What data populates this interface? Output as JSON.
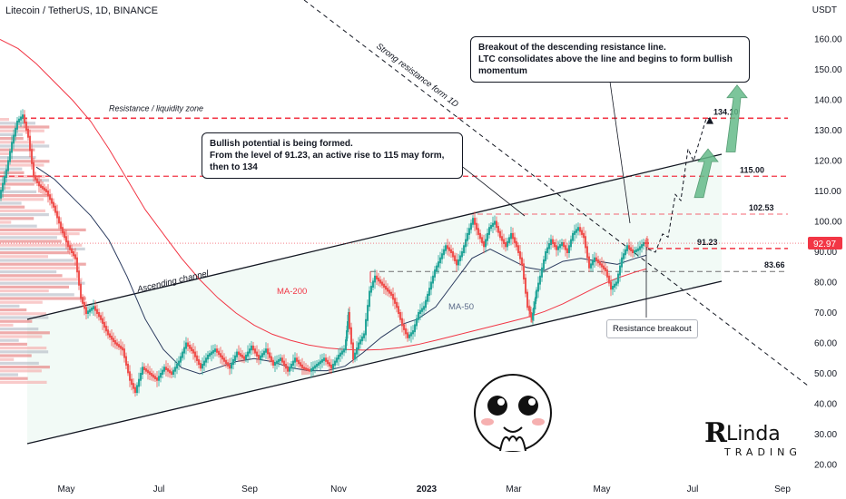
{
  "header": {
    "symbol_title": "Litecoin / TetherUS, 1D, BINANCE",
    "unit": "USDT"
  },
  "chart_data": {
    "type": "line",
    "price_scale": {
      "ylim": [
        15,
        168
      ],
      "ticks": [
        160.0,
        150.0,
        140.0,
        130.0,
        120.0,
        110.0,
        100.0,
        90.0,
        80.0,
        70.0,
        60.0,
        50.0,
        40.0,
        30.0,
        20.0
      ],
      "tick_labels": [
        "160.00",
        "150.00",
        "140.00",
        "130.00",
        "120.00",
        "110.00",
        "100.00",
        "90.00",
        "80.00",
        "70.00",
        "60.00",
        "50.00",
        "40.00",
        "30.00",
        "20.00"
      ],
      "current_price": 92.97,
      "current_price_label": "92.97"
    },
    "time_scale": {
      "labels": [
        "May",
        "Jul",
        "Sep",
        "Nov",
        "2023",
        "Mar",
        "May",
        "Jul",
        "Sep"
      ],
      "bold_label": "2023"
    },
    "series": [
      {
        "name": "MA-200",
        "color": "#f23645",
        "values": [
          [
            0,
            160
          ],
          [
            20,
            157
          ],
          [
            40,
            152
          ],
          [
            60,
            146
          ],
          [
            80,
            140
          ],
          [
            100,
            133
          ],
          [
            120,
            124
          ],
          [
            140,
            114
          ],
          [
            160,
            104
          ],
          [
            180,
            96
          ],
          [
            200,
            88
          ],
          [
            220,
            81
          ],
          [
            240,
            75
          ],
          [
            260,
            70
          ],
          [
            280,
            66
          ],
          [
            300,
            63
          ],
          [
            320,
            61
          ],
          [
            340,
            59.5
          ],
          [
            360,
            58.5
          ],
          [
            380,
            58
          ],
          [
            400,
            57.8
          ],
          [
            420,
            58
          ],
          [
            440,
            58.6
          ],
          [
            460,
            59.6
          ],
          [
            480,
            61
          ],
          [
            500,
            62.5
          ],
          [
            520,
            64
          ],
          [
            540,
            65.5
          ],
          [
            560,
            67
          ],
          [
            580,
            68.5
          ],
          [
            600,
            70.5
          ],
          [
            620,
            73
          ],
          [
            640,
            76
          ],
          [
            660,
            79
          ],
          [
            680,
            81.5
          ],
          [
            700,
            83.5
          ],
          [
            712,
            84.5
          ]
        ]
      },
      {
        "name": "MA-50",
        "color": "#2a3a5e",
        "values": [
          [
            40,
            118
          ],
          [
            60,
            114
          ],
          [
            80,
            108
          ],
          [
            100,
            102
          ],
          [
            120,
            94
          ],
          [
            140,
            82
          ],
          [
            160,
            68
          ],
          [
            180,
            58
          ],
          [
            200,
            52
          ],
          [
            220,
            50
          ],
          [
            240,
            52
          ],
          [
            260,
            54
          ],
          [
            280,
            55
          ],
          [
            300,
            54
          ],
          [
            320,
            52
          ],
          [
            340,
            51
          ],
          [
            360,
            51
          ],
          [
            380,
            52.5
          ],
          [
            400,
            57
          ],
          [
            420,
            62
          ],
          [
            440,
            66
          ],
          [
            460,
            68
          ],
          [
            480,
            72
          ],
          [
            500,
            80
          ],
          [
            520,
            88
          ],
          [
            540,
            91
          ],
          [
            560,
            88
          ],
          [
            580,
            85
          ],
          [
            600,
            84
          ],
          [
            620,
            87
          ],
          [
            640,
            88
          ],
          [
            660,
            87
          ],
          [
            680,
            86
          ],
          [
            700,
            88
          ],
          [
            712,
            89
          ]
        ]
      },
      {
        "name": "Price",
        "color": "#26a69a",
        "values": [
          [
            0,
            108
          ],
          [
            8,
            117
          ],
          [
            14,
            126
          ],
          [
            20,
            133
          ],
          [
            26,
            135
          ],
          [
            32,
            128
          ],
          [
            38,
            115
          ],
          [
            44,
            112
          ],
          [
            52,
            110
          ],
          [
            60,
            105
          ],
          [
            68,
            98
          ],
          [
            76,
            92
          ],
          [
            84,
            88
          ],
          [
            90,
            75
          ],
          [
            96,
            70
          ],
          [
            104,
            72
          ],
          [
            112,
            68
          ],
          [
            120,
            63
          ],
          [
            128,
            60
          ],
          [
            136,
            58
          ],
          [
            144,
            48
          ],
          [
            150,
            44
          ],
          [
            158,
            52
          ],
          [
            166,
            50
          ],
          [
            174,
            48
          ],
          [
            182,
            52
          ],
          [
            190,
            50
          ],
          [
            198,
            54
          ],
          [
            206,
            60
          ],
          [
            214,
            57
          ],
          [
            222,
            52
          ],
          [
            230,
            56
          ],
          [
            238,
            58
          ],
          [
            246,
            55
          ],
          [
            254,
            52
          ],
          [
            262,
            57
          ],
          [
            270,
            55
          ],
          [
            278,
            59
          ],
          [
            286,
            55
          ],
          [
            294,
            58
          ],
          [
            302,
            53
          ],
          [
            310,
            55
          ],
          [
            318,
            51
          ],
          [
            326,
            55
          ],
          [
            334,
            52
          ],
          [
            342,
            51
          ],
          [
            350,
            53
          ],
          [
            358,
            55
          ],
          [
            366,
            52
          ],
          [
            374,
            56
          ],
          [
            380,
            58
          ],
          [
            384,
            70
          ],
          [
            390,
            55
          ],
          [
            396,
            60
          ],
          [
            402,
            63
          ],
          [
            408,
            77
          ],
          [
            414,
            82
          ],
          [
            420,
            80
          ],
          [
            426,
            78
          ],
          [
            432,
            76
          ],
          [
            438,
            72
          ],
          [
            444,
            66
          ],
          [
            450,
            62
          ],
          [
            456,
            64
          ],
          [
            462,
            70
          ],
          [
            468,
            72
          ],
          [
            474,
            78
          ],
          [
            480,
            84
          ],
          [
            486,
            88
          ],
          [
            492,
            92
          ],
          [
            498,
            90
          ],
          [
            504,
            86
          ],
          [
            510,
            90
          ],
          [
            516,
            96
          ],
          [
            522,
            101
          ],
          [
            528,
            96
          ],
          [
            534,
            92
          ],
          [
            540,
            98
          ],
          [
            546,
            100
          ],
          [
            552,
            95
          ],
          [
            558,
            92
          ],
          [
            564,
            96
          ],
          [
            570,
            92
          ],
          [
            576,
            86
          ],
          [
            582,
            72
          ],
          [
            586,
            68
          ],
          [
            590,
            75
          ],
          [
            596,
            82
          ],
          [
            602,
            90
          ],
          [
            608,
            94
          ],
          [
            614,
            91
          ],
          [
            620,
            93
          ],
          [
            626,
            90
          ],
          [
            632,
            96
          ],
          [
            638,
            98
          ],
          [
            644,
            95
          ],
          [
            650,
            85
          ],
          [
            656,
            88
          ],
          [
            662,
            86
          ],
          [
            668,
            84
          ],
          [
            674,
            78
          ],
          [
            680,
            80
          ],
          [
            686,
            88
          ],
          [
            692,
            92
          ],
          [
            698,
            90
          ],
          [
            704,
            91
          ],
          [
            710,
            93
          ],
          [
            714,
            92.97
          ]
        ]
      }
    ],
    "projection": {
      "path": [
        [
          714,
          91
        ],
        [
          722,
          90
        ],
        [
          730,
          96
        ],
        [
          736,
          95
        ],
        [
          744,
          109
        ],
        [
          750,
          107
        ],
        [
          758,
          124
        ],
        [
          764,
          120
        ],
        [
          770,
          126
        ],
        [
          778,
          134
        ],
        [
          782,
          134
        ]
      ],
      "arrows": [
        {
          "from": [
            805,
            123
          ],
          "to": [
            812,
            145
          ]
        },
        {
          "from": [
            770,
            108
          ],
          "to": [
            780,
            124
          ]
        }
      ]
    },
    "levels": [
      {
        "value": 134.1,
        "label": "134.10",
        "color": "#f23645",
        "style": "dashed",
        "weight": 1.6,
        "text": "Resistance / liquidity zone"
      },
      {
        "value": 115.0,
        "label": "115.00",
        "color": "#f23645",
        "style": "dashed",
        "weight": 1.2
      },
      {
        "value": 102.53,
        "label": "102.53",
        "color": "#f23645",
        "style": "dashed",
        "weight": 0.8
      },
      {
        "value": 91.23,
        "label": "91.23",
        "color": "#f23645",
        "style": "dashed",
        "weight": 1.6
      },
      {
        "value": 83.66,
        "label": "83.66",
        "color": "#707070",
        "style": "dashed",
        "weight": 1.0
      }
    ],
    "annotations": {
      "ascending_channel": "Ascending channel",
      "strong_resistance": "Strong resistance form 1D",
      "ma200_label": "MA-200",
      "ma50_label": "MA-50",
      "callout_top": [
        "Breakout of the descending resistance line.",
        "LTC consolidates above the line and begins to form bullish momentum"
      ],
      "callout_mid": [
        "Bullish potential is being formed.",
        "From the level of 91.23, an active rise to 115 may form, then to 134"
      ],
      "badge": "Resistance breakout"
    },
    "colors": {
      "up": "#26a69a",
      "down": "#ef5350",
      "channel_fill": "#e8f5ee",
      "axis_text": "#131722",
      "price_tag": "#f23645",
      "projection_arrow": "#66bb8a"
    },
    "grid": false,
    "legend": "none"
  },
  "logo": {
    "brand": "Linda",
    "initial": "R",
    "tagline": "TRADING"
  }
}
